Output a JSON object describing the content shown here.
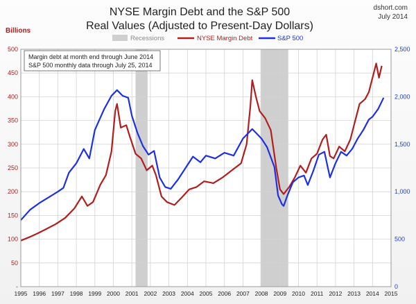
{
  "header": {
    "title_line1": "NYSE Margin Debt and the S&P 500",
    "title_line2": "Real Values (Adjusted to Present-Day Dollars)",
    "source": "dshort.com",
    "date": "July 2014"
  },
  "colors": {
    "margin_debt": "#b01e1e",
    "sp500": "#1d2fe6",
    "recession": "#cfcfcf",
    "grid": "#d3d3d3"
  },
  "note": {
    "line1": "Margin debt at month end through June 2014",
    "line2": "S&P 500 monthly data through July 25, 2014"
  },
  "chart_data": {
    "type": "line",
    "y_left_label": "Billions",
    "y_left_range": [
      0,
      500
    ],
    "y_left_ticks": [
      "-",
      "50",
      "100",
      "150",
      "200",
      "250",
      "300",
      "350",
      "400",
      "450",
      "500"
    ],
    "y_right_range": [
      0,
      2500
    ],
    "y_right_ticks": [
      "0",
      "500",
      "1,000",
      "1,500",
      "2,000",
      "2,500"
    ],
    "x_range": [
      1995,
      2015
    ],
    "x_ticks": [
      "1995",
      "1996",
      "1997",
      "1998",
      "1999",
      "2000",
      "2001",
      "2002",
      "2003",
      "2004",
      "2005",
      "2006",
      "2007",
      "2008",
      "2009",
      "2010",
      "2011",
      "2012",
      "2013",
      "2014",
      "2015"
    ],
    "grid": true,
    "legend": [
      "Recessions",
      "NYSE Margin Debt",
      "S&P 500"
    ],
    "legend_position": "top",
    "recessions": [
      [
        2001.2,
        2001.85
      ],
      [
        2007.95,
        2009.45
      ]
    ],
    "series": [
      {
        "name": "NYSE Margin Debt",
        "axis": "left",
        "points": [
          [
            1995.0,
            97
          ],
          [
            1995.5,
            105
          ],
          [
            1995.9,
            112
          ],
          [
            1996.4,
            122
          ],
          [
            1996.9,
            132
          ],
          [
            1997.4,
            145
          ],
          [
            1997.9,
            165
          ],
          [
            1998.3,
            190
          ],
          [
            1998.6,
            170
          ],
          [
            1998.9,
            178
          ],
          [
            1999.3,
            215
          ],
          [
            1999.6,
            235
          ],
          [
            1999.9,
            285
          ],
          [
            2000.1,
            370
          ],
          [
            2000.2,
            385
          ],
          [
            2000.4,
            335
          ],
          [
            2000.7,
            340
          ],
          [
            2000.9,
            315
          ],
          [
            2001.2,
            280
          ],
          [
            2001.5,
            270
          ],
          [
            2001.8,
            245
          ],
          [
            2002.1,
            255
          ],
          [
            2002.3,
            235
          ],
          [
            2002.6,
            190
          ],
          [
            2002.9,
            178
          ],
          [
            2003.3,
            172
          ],
          [
            2003.7,
            188
          ],
          [
            2004.1,
            205
          ],
          [
            2004.5,
            210
          ],
          [
            2004.9,
            222
          ],
          [
            2005.4,
            218
          ],
          [
            2005.9,
            230
          ],
          [
            2006.4,
            245
          ],
          [
            2006.9,
            260
          ],
          [
            2007.2,
            300
          ],
          [
            2007.4,
            380
          ],
          [
            2007.5,
            435
          ],
          [
            2007.7,
            400
          ],
          [
            2007.9,
            370
          ],
          [
            2008.2,
            355
          ],
          [
            2008.5,
            330
          ],
          [
            2008.8,
            250
          ],
          [
            2009.0,
            205
          ],
          [
            2009.2,
            195
          ],
          [
            2009.5,
            210
          ],
          [
            2009.8,
            230
          ],
          [
            2010.1,
            255
          ],
          [
            2010.4,
            240
          ],
          [
            2010.7,
            270
          ],
          [
            2011.0,
            280
          ],
          [
            2011.3,
            310
          ],
          [
            2011.5,
            320
          ],
          [
            2011.7,
            275
          ],
          [
            2011.9,
            270
          ],
          [
            2012.2,
            295
          ],
          [
            2012.5,
            285
          ],
          [
            2012.8,
            310
          ],
          [
            2013.0,
            340
          ],
          [
            2013.3,
            385
          ],
          [
            2013.6,
            395
          ],
          [
            2013.8,
            410
          ],
          [
            2014.0,
            440
          ],
          [
            2014.2,
            470
          ],
          [
            2014.35,
            440
          ],
          [
            2014.5,
            465
          ]
        ]
      },
      {
        "name": "S&P 500",
        "axis": "right",
        "points": [
          [
            1995.0,
            700
          ],
          [
            1995.5,
            810
          ],
          [
            1996.0,
            880
          ],
          [
            1996.5,
            940
          ],
          [
            1997.0,
            1000
          ],
          [
            1997.3,
            1040
          ],
          [
            1997.6,
            1200
          ],
          [
            1998.0,
            1300
          ],
          [
            1998.4,
            1450
          ],
          [
            1998.7,
            1350
          ],
          [
            1999.0,
            1650
          ],
          [
            1999.5,
            1870
          ],
          [
            1999.9,
            2010
          ],
          [
            2000.2,
            2070
          ],
          [
            2000.5,
            2010
          ],
          [
            2000.8,
            1990
          ],
          [
            2001.0,
            1800
          ],
          [
            2001.3,
            1620
          ],
          [
            2001.6,
            1480
          ],
          [
            2001.9,
            1390
          ],
          [
            2002.2,
            1430
          ],
          [
            2002.5,
            1150
          ],
          [
            2002.8,
            1050
          ],
          [
            2003.1,
            1030
          ],
          [
            2003.5,
            1130
          ],
          [
            2003.9,
            1250
          ],
          [
            2004.3,
            1370
          ],
          [
            2004.7,
            1310
          ],
          [
            2005.0,
            1380
          ],
          [
            2005.5,
            1350
          ],
          [
            2006.0,
            1410
          ],
          [
            2006.5,
            1380
          ],
          [
            2007.0,
            1560
          ],
          [
            2007.5,
            1660
          ],
          [
            2007.8,
            1600
          ],
          [
            2008.0,
            1560
          ],
          [
            2008.3,
            1470
          ],
          [
            2008.7,
            1260
          ],
          [
            2008.9,
            960
          ],
          [
            2009.1,
            870
          ],
          [
            2009.2,
            850
          ],
          [
            2009.4,
            960
          ],
          [
            2009.7,
            1100
          ],
          [
            2010.0,
            1150
          ],
          [
            2010.3,
            1170
          ],
          [
            2010.5,
            1070
          ],
          [
            2010.8,
            1220
          ],
          [
            2011.1,
            1390
          ],
          [
            2011.4,
            1420
          ],
          [
            2011.7,
            1150
          ],
          [
            2012.0,
            1300
          ],
          [
            2012.3,
            1420
          ],
          [
            2012.6,
            1380
          ],
          [
            2012.9,
            1450
          ],
          [
            2013.2,
            1560
          ],
          [
            2013.5,
            1650
          ],
          [
            2013.8,
            1760
          ],
          [
            2014.0,
            1790
          ],
          [
            2014.3,
            1870
          ],
          [
            2014.6,
            1990
          ]
        ]
      }
    ]
  }
}
